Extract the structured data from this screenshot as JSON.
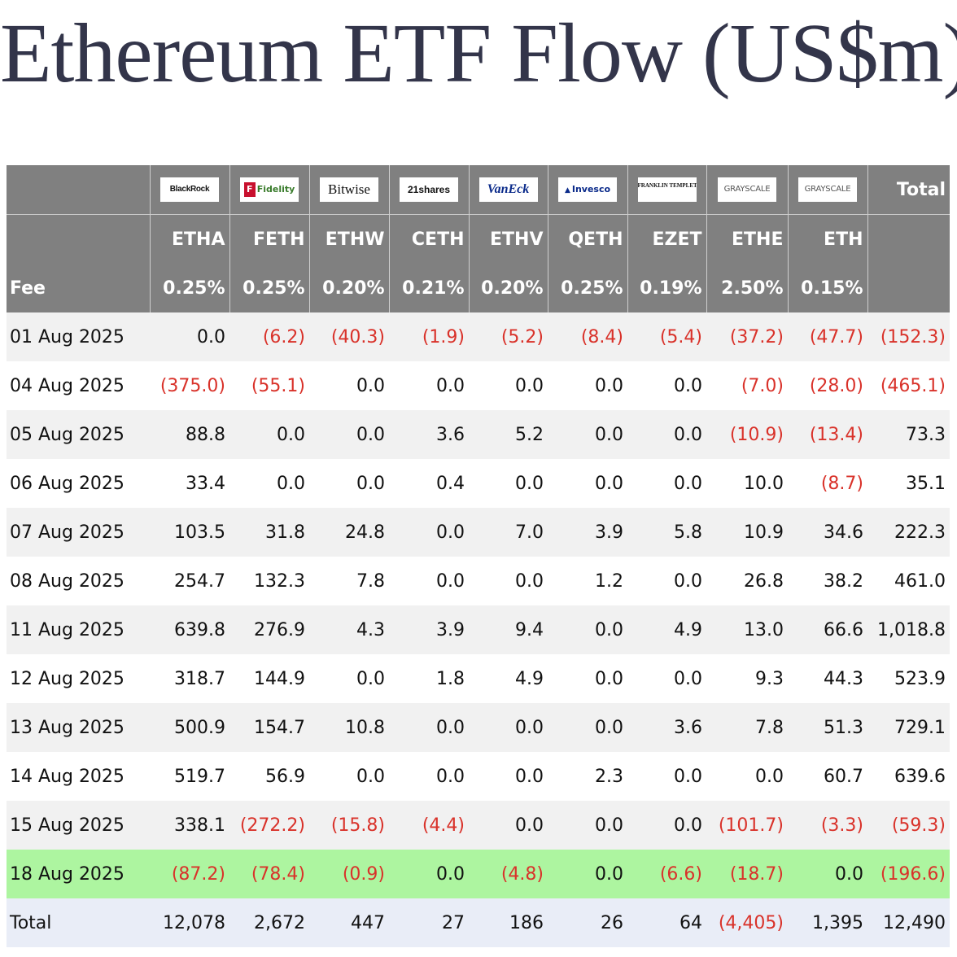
{
  "title": "Ethereum ETF Flow (US$m)",
  "issuers": [
    {
      "name": "BlackRock",
      "icon": "blackrock-logo"
    },
    {
      "name": "Fidelity",
      "icon": "fidelity-logo"
    },
    {
      "name": "Bitwise",
      "icon": "bitwise-logo"
    },
    {
      "name": "21shares",
      "icon": "21shares-logo"
    },
    {
      "name": "VanEck",
      "icon": "vaneck-logo"
    },
    {
      "name": "Invesco",
      "icon": "invesco-logo"
    },
    {
      "name": "FRANKLIN TEMPLETON",
      "icon": "franklin-templeton-logo"
    },
    {
      "name": "GRAYSCALE",
      "icon": "grayscale-logo"
    },
    {
      "name": "GRAYSCALE",
      "icon": "grayscale-logo"
    }
  ],
  "total_header": "Total",
  "tickers": [
    "ETHA",
    "FETH",
    "ETHW",
    "CETH",
    "ETHV",
    "QETH",
    "EZET",
    "ETHE",
    "ETH"
  ],
  "fee_label": "Fee",
  "fees": [
    "0.25%",
    "0.25%",
    "0.20%",
    "0.21%",
    "0.20%",
    "0.25%",
    "0.19%",
    "2.50%",
    "0.15%"
  ],
  "rows": [
    {
      "date": "01 Aug 2025",
      "values": [
        "0.0",
        "(6.2)",
        "(40.3)",
        "(1.9)",
        "(5.2)",
        "(8.4)",
        "(5.4)",
        "(37.2)",
        "(47.7)",
        "(152.3)"
      ]
    },
    {
      "date": "04 Aug 2025",
      "values": [
        "(375.0)",
        "(55.1)",
        "0.0",
        "0.0",
        "0.0",
        "0.0",
        "0.0",
        "(7.0)",
        "(28.0)",
        "(465.1)"
      ]
    },
    {
      "date": "05 Aug 2025",
      "values": [
        "88.8",
        "0.0",
        "0.0",
        "3.6",
        "5.2",
        "0.0",
        "0.0",
        "(10.9)",
        "(13.4)",
        "73.3"
      ]
    },
    {
      "date": "06 Aug 2025",
      "values": [
        "33.4",
        "0.0",
        "0.0",
        "0.4",
        "0.0",
        "0.0",
        "0.0",
        "10.0",
        "(8.7)",
        "35.1"
      ]
    },
    {
      "date": "07 Aug 2025",
      "values": [
        "103.5",
        "31.8",
        "24.8",
        "0.0",
        "7.0",
        "3.9",
        "5.8",
        "10.9",
        "34.6",
        "222.3"
      ]
    },
    {
      "date": "08 Aug 2025",
      "values": [
        "254.7",
        "132.3",
        "7.8",
        "0.0",
        "0.0",
        "1.2",
        "0.0",
        "26.8",
        "38.2",
        "461.0"
      ]
    },
    {
      "date": "11 Aug 2025",
      "values": [
        "639.8",
        "276.9",
        "4.3",
        "3.9",
        "9.4",
        "0.0",
        "4.9",
        "13.0",
        "66.6",
        "1,018.8"
      ]
    },
    {
      "date": "12 Aug 2025",
      "values": [
        "318.7",
        "144.9",
        "0.0",
        "1.8",
        "4.9",
        "0.0",
        "0.0",
        "9.3",
        "44.3",
        "523.9"
      ]
    },
    {
      "date": "13 Aug 2025",
      "values": [
        "500.9",
        "154.7",
        "10.8",
        "0.0",
        "0.0",
        "0.0",
        "3.6",
        "7.8",
        "51.3",
        "729.1"
      ]
    },
    {
      "date": "14 Aug 2025",
      "values": [
        "519.7",
        "56.9",
        "0.0",
        "0.0",
        "0.0",
        "2.3",
        "0.0",
        "0.0",
        "60.7",
        "639.6"
      ]
    },
    {
      "date": "15 Aug 2025",
      "values": [
        "338.1",
        "(272.2)",
        "(15.8)",
        "(4.4)",
        "0.0",
        "0.0",
        "0.0",
        "(101.7)",
        "(3.3)",
        "(59.3)"
      ]
    },
    {
      "date": "18 Aug 2025",
      "values": [
        "(87.2)",
        "(78.4)",
        "(0.9)",
        "0.0",
        "(4.8)",
        "0.0",
        "(6.6)",
        "(18.7)",
        "0.0",
        "(196.6)"
      ]
    }
  ],
  "total_row": {
    "label": "Total",
    "values": [
      "12,078",
      "2,672",
      "447",
      "27",
      "186",
      "26",
      "64",
      "(4,405)",
      "1,395",
      "12,490"
    ]
  },
  "colors": {
    "header_bg": "#808080",
    "negative": "#d9322a",
    "highlight_row": "#adf5a0",
    "total_row": "#e9edf7",
    "stripe": "#f1f1f1",
    "title": "#33354a"
  }
}
